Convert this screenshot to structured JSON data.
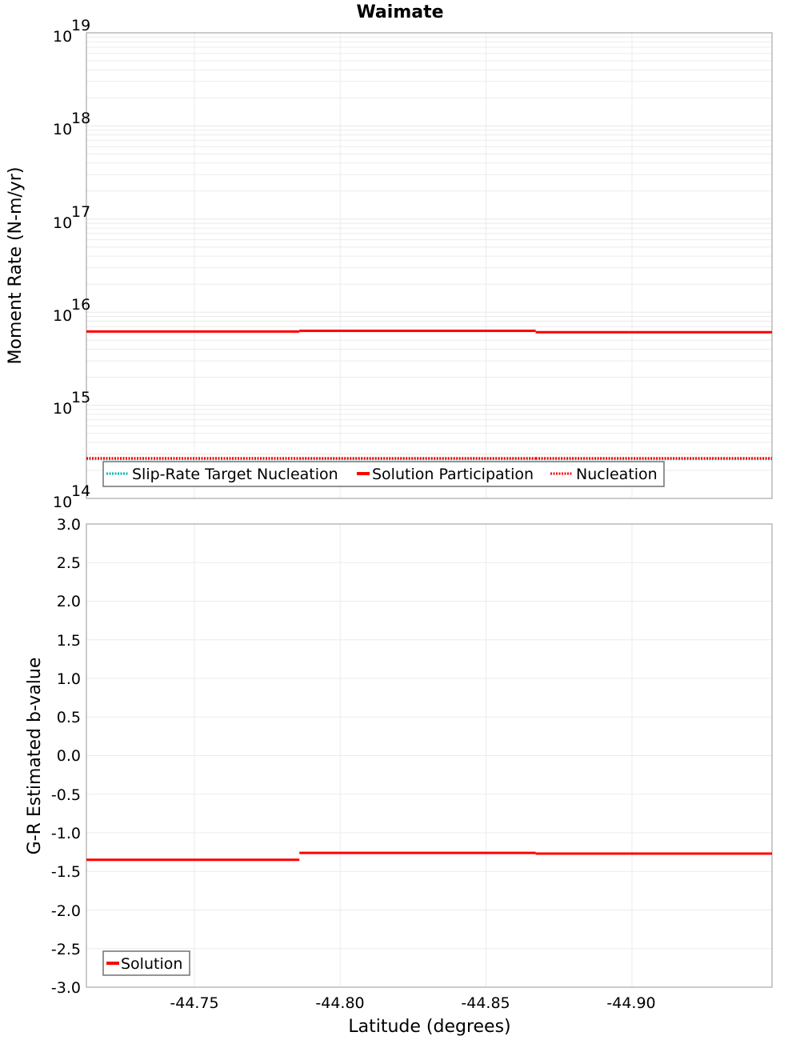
{
  "title": "Waimate",
  "top_plot": {
    "ylabel": "Moment Rate (N-m/yr)",
    "y_ticks": [
      {
        "base": "10",
        "exp": "19"
      },
      {
        "base": "10",
        "exp": "18"
      },
      {
        "base": "10",
        "exp": "17"
      },
      {
        "base": "10",
        "exp": "16"
      },
      {
        "base": "10",
        "exp": "15"
      },
      {
        "base": "10",
        "exp": "14"
      }
    ],
    "legend": [
      {
        "label": "Slip-Rate Target Nucleation",
        "color": "#00b4b4",
        "style": "dotted"
      },
      {
        "label": "Solution Participation",
        "color": "#ff0000",
        "style": "solid"
      },
      {
        "label": "Nucleation",
        "color": "#ff0000",
        "style": "dotted"
      }
    ]
  },
  "bottom_plot": {
    "ylabel": "G-R Estimated b-value",
    "y_ticks": [
      "3.0",
      "2.5",
      "2.0",
      "1.5",
      "1.0",
      "0.5",
      "0.0",
      "-0.5",
      "-1.0",
      "-1.5",
      "-2.0",
      "-2.5",
      "-3.0"
    ],
    "legend": [
      {
        "label": "Solution",
        "color": "#ff0000",
        "style": "solid"
      }
    ]
  },
  "xlabel": "Latitude (degrees)",
  "x_ticks": [
    "-44.75",
    "-44.80",
    "-44.85",
    "-44.90"
  ],
  "chart_data": [
    {
      "type": "line",
      "title": "Waimate",
      "xlabel": "Latitude (degrees)",
      "ylabel": "Moment Rate (N-m/yr)",
      "yscale": "log",
      "ylim": [
        100000000000000.0,
        1e+19
      ],
      "xlim": [
        -44.713,
        -44.948
      ],
      "grid": true,
      "legend_position": "lower-left inside",
      "x_segments": [
        [
          -44.713,
          -44.786
        ],
        [
          -44.786,
          -44.867
        ],
        [
          -44.867,
          -44.948
        ]
      ],
      "series": [
        {
          "name": "Slip-Rate Target Nucleation",
          "style": "dotted",
          "color": "#00b4b4",
          "values": [
            270000000000000.0,
            270000000000000.0,
            270000000000000.0
          ]
        },
        {
          "name": "Solution Participation",
          "style": "solid",
          "color": "#ff0000",
          "values": [
            6200000000000000.0,
            6300000000000000.0,
            6100000000000000.0
          ]
        },
        {
          "name": "Nucleation",
          "style": "dotted",
          "color": "#ff0000",
          "values": [
            270000000000000.0,
            270000000000000.0,
            270000000000000.0
          ]
        }
      ]
    },
    {
      "type": "line",
      "title": "",
      "xlabel": "Latitude (degrees)",
      "ylabel": "G-R Estimated b-value",
      "ylim": [
        -3.0,
        3.0
      ],
      "xlim": [
        -44.713,
        -44.948
      ],
      "grid": true,
      "legend_position": "lower-left inside",
      "x_segments": [
        [
          -44.713,
          -44.786
        ],
        [
          -44.786,
          -44.867
        ],
        [
          -44.867,
          -44.948
        ]
      ],
      "series": [
        {
          "name": "Solution",
          "style": "solid",
          "color": "#ff0000",
          "values": [
            -1.35,
            -1.26,
            -1.27
          ]
        }
      ]
    }
  ]
}
